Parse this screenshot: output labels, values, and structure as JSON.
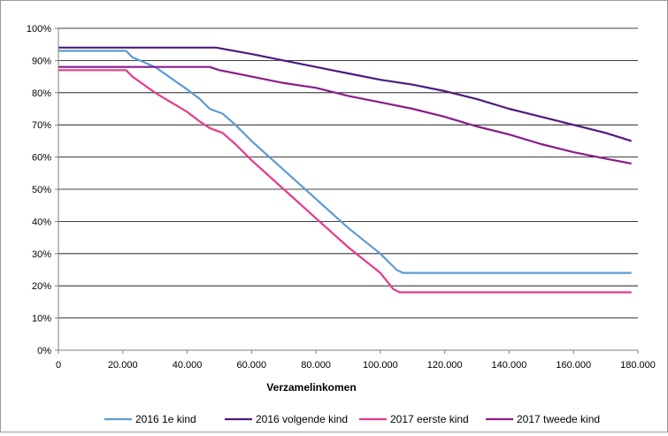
{
  "chart_data": {
    "type": "line",
    "title": "",
    "xlabel": "Verzamelinkomen",
    "ylabel": "",
    "xlim": [
      0,
      180000
    ],
    "ylim": [
      0,
      100
    ],
    "x_ticks": [
      0,
      20000,
      40000,
      60000,
      80000,
      100000,
      120000,
      140000,
      160000,
      180000
    ],
    "x_tick_labels": [
      "0",
      "20.000",
      "40.000",
      "60.000",
      "80.000",
      "100.000",
      "120.000",
      "140.000",
      "160.000",
      "180.000"
    ],
    "y_ticks": [
      0,
      10,
      20,
      30,
      40,
      50,
      60,
      70,
      80,
      90,
      100
    ],
    "y_tick_labels": [
      "0%",
      "10%",
      "20%",
      "30%",
      "40%",
      "50%",
      "60%",
      "70%",
      "80%",
      "90%",
      "100%"
    ],
    "grid": "horizontal",
    "legend_position": "bottom",
    "series": [
      {
        "name": "2016 1e kind",
        "color": "#5b9bd5",
        "points": [
          [
            0,
            93
          ],
          [
            21000,
            93
          ],
          [
            23000,
            91
          ],
          [
            30000,
            88
          ],
          [
            40000,
            81
          ],
          [
            44000,
            78
          ],
          [
            47000,
            75
          ],
          [
            51000,
            73.5
          ],
          [
            55000,
            70
          ],
          [
            60000,
            65
          ],
          [
            70000,
            56
          ],
          [
            80000,
            47
          ],
          [
            90000,
            38
          ],
          [
            100000,
            30
          ],
          [
            105000,
            25
          ],
          [
            107000,
            24
          ],
          [
            178000,
            24
          ]
        ]
      },
      {
        "name": "2016 volgende kind",
        "color": "#4e1a80",
        "points": [
          [
            0,
            94
          ],
          [
            49000,
            94
          ],
          [
            60000,
            92
          ],
          [
            70000,
            90
          ],
          [
            80000,
            88
          ],
          [
            90000,
            86
          ],
          [
            100000,
            84
          ],
          [
            110000,
            82.5
          ],
          [
            120000,
            80.5
          ],
          [
            130000,
            78
          ],
          [
            140000,
            75
          ],
          [
            150000,
            72.5
          ],
          [
            160000,
            70
          ],
          [
            170000,
            67.5
          ],
          [
            178000,
            65
          ]
        ]
      },
      {
        "name": "2017 eerste kind",
        "color": "#e8398a",
        "points": [
          [
            0,
            87
          ],
          [
            21000,
            87
          ],
          [
            23000,
            85
          ],
          [
            30000,
            80
          ],
          [
            40000,
            74
          ],
          [
            44000,
            71
          ],
          [
            47000,
            69
          ],
          [
            51000,
            67.5
          ],
          [
            55000,
            64
          ],
          [
            60000,
            59
          ],
          [
            70000,
            50
          ],
          [
            80000,
            41
          ],
          [
            90000,
            32
          ],
          [
            100000,
            24
          ],
          [
            104000,
            19
          ],
          [
            106000,
            18
          ],
          [
            178000,
            18
          ]
        ]
      },
      {
        "name": "2017 tweede kind",
        "color": "#8b1a8b",
        "points": [
          [
            0,
            88
          ],
          [
            47000,
            88
          ],
          [
            50000,
            87
          ],
          [
            60000,
            85
          ],
          [
            70000,
            83
          ],
          [
            80000,
            81.5
          ],
          [
            90000,
            79
          ],
          [
            100000,
            77
          ],
          [
            110000,
            75
          ],
          [
            120000,
            72.5
          ],
          [
            130000,
            69.5
          ],
          [
            140000,
            67
          ],
          [
            150000,
            64
          ],
          [
            160000,
            61.5
          ],
          [
            170000,
            59.5
          ],
          [
            178000,
            58
          ]
        ]
      }
    ]
  }
}
